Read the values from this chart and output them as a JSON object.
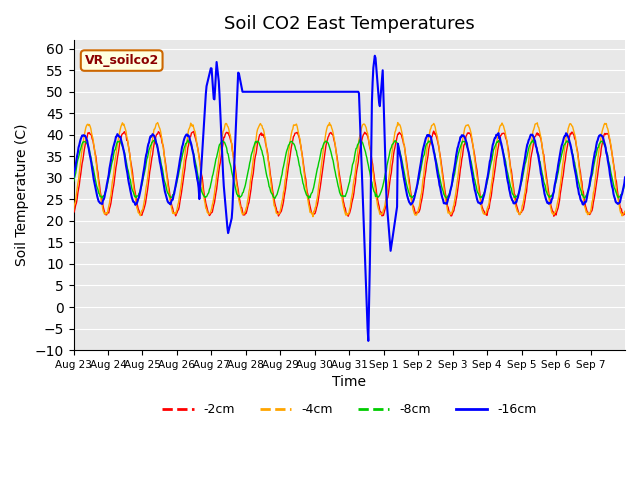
{
  "title": "Soil CO2 East Temperatures",
  "xlabel": "Time",
  "ylabel": "Soil Temperature (C)",
  "ylim": [
    -10,
    62
  ],
  "yticks": [
    -10,
    -5,
    0,
    5,
    10,
    15,
    20,
    25,
    30,
    35,
    40,
    45,
    50,
    55,
    60
  ],
  "bg_color": "#e8e8e8",
  "colors": {
    "-2cm": "#ff0000",
    "-4cm": "#ffa500",
    "-8cm": "#00cc00",
    "-16cm": "#0000ff"
  },
  "legend_label": "VR_soilco2",
  "xtick_labels": [
    "Aug 23",
    "Aug 24",
    "Aug 25",
    "Aug 26",
    "Aug 27",
    "Aug 28",
    "Aug 29",
    "Aug 30",
    "Aug 31",
    "Sep 1",
    "Sep 2",
    "Sep 3",
    "Sep 4",
    "Sep 5",
    "Sep 6",
    "Sep 7"
  ],
  "n_days": 16,
  "seed": 42
}
